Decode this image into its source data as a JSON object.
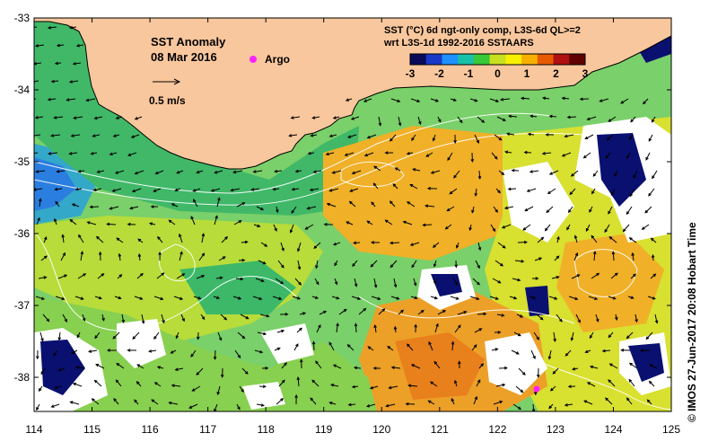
{
  "title": "SST Anomaly",
  "date": "08 Mar 2016",
  "argo_label": "Argo",
  "velocity_scale_label": "0.5 m/s",
  "colorbar": {
    "line1": "SST (°C) 6d ngt-only comp, L3S-6d QL>=2",
    "line2": "wrt L3S-1d 1992-2016 SSTAARS",
    "ticks": [
      "-3",
      "-2",
      "-1",
      "0",
      "1",
      "2",
      "3"
    ],
    "colors": [
      "#0a0a5a",
      "#1838c8",
      "#1e90ff",
      "#18c0a8",
      "#38c838",
      "#c8e020",
      "#f8f000",
      "#f8b000",
      "#e85a00",
      "#b01010",
      "#600000"
    ]
  },
  "axes": {
    "x_ticks": [
      "114",
      "115",
      "116",
      "117",
      "118",
      "119",
      "120",
      "121",
      "122",
      "123",
      "124",
      "125"
    ],
    "y_ticks": [
      "-33",
      "-34",
      "-35",
      "-36",
      "-37",
      "-38"
    ]
  },
  "credit": "© IMOS 27-Jun-2017 20:08 Hobart Time",
  "colors": {
    "land": "#f9c79d",
    "coast": "#000000",
    "ocean_green": "#58c860",
    "ocean_yellow": "#c8e030",
    "ocean_orange": "#f0a820",
    "contour": "#ffffff",
    "argo": "#ff20ff"
  }
}
